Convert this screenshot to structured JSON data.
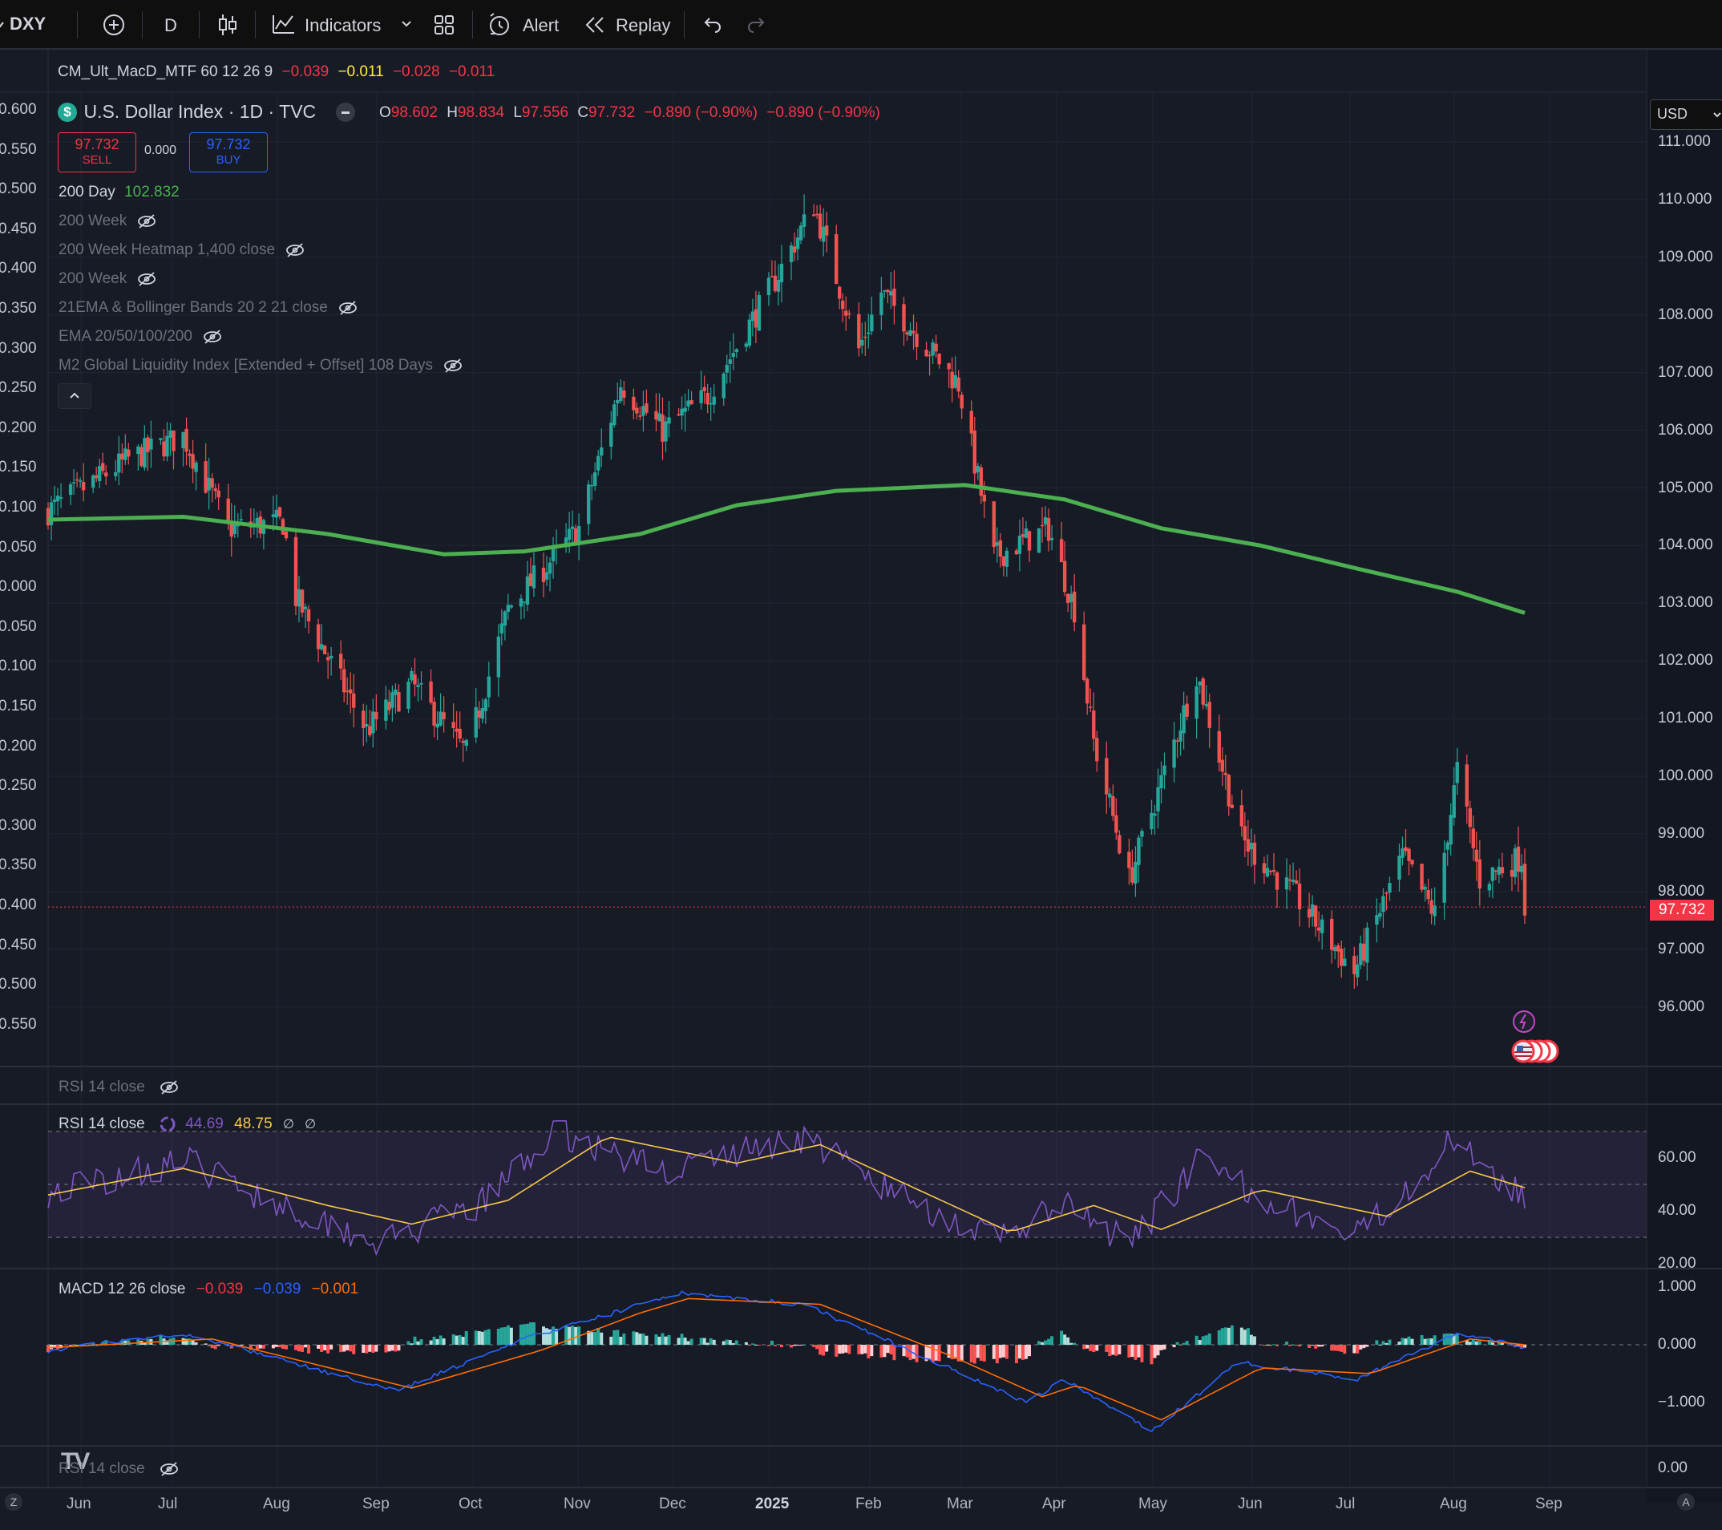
{
  "toolbar": {
    "symbol": "DXY",
    "interval": "D",
    "indicators_label": "Indicators",
    "alert_label": "Alert",
    "replay_label": "Replay"
  },
  "mtf_indicator": {
    "name": "CM_Ult_MacD_MTF 60 12 26 9",
    "v1": "−0.039",
    "v2": "−0.011",
    "v3": "−0.028",
    "v4": "−0.011"
  },
  "symbol_header": {
    "title": "U.S. Dollar Index · 1D · TVC",
    "open_label": "O",
    "open": "98.602",
    "high_label": "H",
    "high": "98.834",
    "low_label": "L",
    "low": "97.556",
    "close_label": "C",
    "close": "97.732",
    "change": "−0.890 (−0.90%)",
    "change2": "−0.890 (−0.90%)"
  },
  "trade": {
    "sell_price": "97.732",
    "sell_label": "SELL",
    "spread": "0.000",
    "buy_price": "97.732",
    "buy_label": "BUY"
  },
  "overlays": {
    "ma200_name": "200 Day",
    "ma200_value": "102.832",
    "hidden": [
      "200 Week",
      "200 Week Heatmap 1,400 close",
      "200 Week",
      "21EMA & Bollinger Bands 20 2 21 close",
      "EMA 20/50/100/200",
      "M2 Global Liquidity Index [Extended + Offset] 108 Days"
    ]
  },
  "currency": "USD",
  "price_axis": [
    "111.000",
    "110.000",
    "109.000",
    "108.000",
    "107.000",
    "106.000",
    "105.000",
    "104.000",
    "103.000",
    "102.000",
    "101.000",
    "100.000",
    "99.000",
    "98.000",
    "97.000",
    "96.000"
  ],
  "current_price_tag": "97.732",
  "left_axis": [
    "0.600",
    "0.550",
    "0.500",
    "0.450",
    "0.400",
    "0.350",
    "0.300",
    "0.250",
    "0.200",
    "0.150",
    "0.100",
    "0.050",
    "0.000",
    "0.050",
    "0.100",
    "0.150",
    "0.200",
    "0.250",
    "0.300",
    "0.350",
    "0.400",
    "0.450",
    "0.500",
    "0.550"
  ],
  "rsi_hidden_label": "RSI 14 close",
  "rsi": {
    "label": "RSI 14 close",
    "value": "44.69",
    "ma_value": "48.75",
    "na1": "∅",
    "na2": "∅",
    "axis": [
      "60.00",
      "40.00",
      "20.00"
    ]
  },
  "macd": {
    "label": "MACD 12 26 close",
    "hist": "−0.039",
    "macd": "−0.039",
    "signal": "−0.001",
    "axis": [
      "1.000",
      "0.000",
      "−1.000"
    ]
  },
  "bottom_pane": {
    "label": "RSI 14 close",
    "axis": "0.00",
    "logo": "TV"
  },
  "time_axis": [
    {
      "label": "Jun",
      "bold": false
    },
    {
      "label": "Jul",
      "bold": false
    },
    {
      "label": "Aug",
      "bold": false
    },
    {
      "label": "Sep",
      "bold": false
    },
    {
      "label": "Oct",
      "bold": false
    },
    {
      "label": "Nov",
      "bold": false
    },
    {
      "label": "Dec",
      "bold": false
    },
    {
      "label": "2025",
      "bold": true
    },
    {
      "label": "Feb",
      "bold": false
    },
    {
      "label": "Mar",
      "bold": false
    },
    {
      "label": "Apr",
      "bold": false
    },
    {
      "label": "May",
      "bold": false
    },
    {
      "label": "Jun",
      "bold": false
    },
    {
      "label": "Jul",
      "bold": false
    },
    {
      "label": "Aug",
      "bold": false
    },
    {
      "label": "Sep",
      "bold": false
    }
  ],
  "bottom_left": "Z",
  "bottom_right": "A",
  "colors": {
    "bg": "#171b26",
    "up": "#26a69a",
    "down": "#ef5350",
    "ma200": "#4caf50",
    "rsi": "#7e57c2",
    "rsi_ma": "#f7c948",
    "macd": "#2962ff",
    "signal": "#ff6d00"
  },
  "chart_data": [
    {
      "type": "candlestick",
      "title": "U.S. Dollar Index · 1D · TVC",
      "x_range": [
        "2024-05-20",
        "2025-08-22"
      ],
      "ylim": [
        95.2,
        111.5
      ],
      "close_path": [
        {
          "date": "2024-05-20",
          "close": 104.6
        },
        {
          "date": "2024-06-14",
          "close": 105.5
        },
        {
          "date": "2024-07-01",
          "close": 105.9
        },
        {
          "date": "2024-07-15",
          "close": 104.3
        },
        {
          "date": "2024-08-01",
          "close": 104.4
        },
        {
          "date": "2024-08-05",
          "close": 103.1
        },
        {
          "date": "2024-08-27",
          "close": 100.8
        },
        {
          "date": "2024-09-10",
          "close": 101.6
        },
        {
          "date": "2024-09-27",
          "close": 100.4
        },
        {
          "date": "2024-10-10",
          "close": 102.9
        },
        {
          "date": "2024-11-01",
          "close": 104.3
        },
        {
          "date": "2024-11-14",
          "close": 106.8
        },
        {
          "date": "2024-11-27",
          "close": 106.0
        },
        {
          "date": "2024-12-11",
          "close": 106.6
        },
        {
          "date": "2024-12-31",
          "close": 108.5
        },
        {
          "date": "2025-01-13",
          "close": 109.9
        },
        {
          "date": "2025-01-27",
          "close": 107.4
        },
        {
          "date": "2025-02-03",
          "close": 108.4
        },
        {
          "date": "2025-02-27",
          "close": 106.8
        },
        {
          "date": "2025-03-10",
          "close": 103.8
        },
        {
          "date": "2025-03-27",
          "close": 104.3
        },
        {
          "date": "2025-04-04",
          "close": 102.9
        },
        {
          "date": "2025-04-10",
          "close": 100.6
        },
        {
          "date": "2025-04-21",
          "close": 98.2
        },
        {
          "date": "2025-05-01",
          "close": 99.9
        },
        {
          "date": "2025-05-12",
          "close": 101.8
        },
        {
          "date": "2025-05-26",
          "close": 98.9
        },
        {
          "date": "2025-06-12",
          "close": 97.9
        },
        {
          "date": "2025-06-30",
          "close": 96.6
        },
        {
          "date": "2025-07-15",
          "close": 98.6
        },
        {
          "date": "2025-07-25",
          "close": 97.6
        },
        {
          "date": "2025-08-01",
          "close": 100.1
        },
        {
          "date": "2025-08-08",
          "close": 98.2
        },
        {
          "date": "2025-08-21",
          "close": 98.6
        },
        {
          "date": "2025-08-22",
          "close": 97.732
        }
      ],
      "ma200": [
        {
          "date": "2024-05-20",
          "value": 104.45
        },
        {
          "date": "2024-07-01",
          "value": 104.5
        },
        {
          "date": "2024-08-15",
          "value": 104.2
        },
        {
          "date": "2024-09-20",
          "value": 103.85
        },
        {
          "date": "2024-10-15",
          "value": 103.9
        },
        {
          "date": "2024-11-20",
          "value": 104.2
        },
        {
          "date": "2024-12-20",
          "value": 104.7
        },
        {
          "date": "2025-01-20",
          "value": 104.95
        },
        {
          "date": "2025-03-01",
          "value": 105.05
        },
        {
          "date": "2025-04-01",
          "value": 104.8
        },
        {
          "date": "2025-05-01",
          "value": 104.3
        },
        {
          "date": "2025-06-01",
          "value": 104.0
        },
        {
          "date": "2025-07-01",
          "value": 103.6
        },
        {
          "date": "2025-08-01",
          "value": 103.2
        },
        {
          "date": "2025-08-22",
          "value": 102.832
        }
      ]
    },
    {
      "type": "line",
      "title": "RSI 14 close",
      "ylim": [
        20,
        70
      ],
      "series": [
        {
          "values_by_date": [
            {
              "date": "2024-05-20",
              "value": 47
            },
            {
              "date": "2024-07-01",
              "value": 59
            },
            {
              "date": "2024-08-05",
              "value": 40
            },
            {
              "date": "2024-09-01",
              "value": 28
            },
            {
              "date": "2024-10-01",
              "value": 42
            },
            {
              "date": "2024-10-25",
              "value": 70
            },
            {
              "date": "2024-11-27",
              "value": 55
            },
            {
              "date": "2025-01-10",
              "value": 68
            },
            {
              "date": "2025-02-05",
              "value": 48
            },
            {
              "date": "2025-03-10",
              "value": 29
            },
            {
              "date": "2025-04-01",
              "value": 42
            },
            {
              "date": "2025-04-21",
              "value": 27
            },
            {
              "date": "2025-05-12",
              "value": 58
            },
            {
              "date": "2025-06-30",
              "value": 29
            },
            {
              "date": "2025-08-01",
              "value": 68
            },
            {
              "date": "2025-08-22",
              "value": 44.69
            }
          ]
        },
        {
          "values_by_date": [
            {
              "date": "2024-05-20",
              "value": 46
            },
            {
              "date": "2024-07-01",
              "value": 56
            },
            {
              "date": "2024-08-15",
              "value": 42
            },
            {
              "date": "2024-09-10",
              "value": 35
            },
            {
              "date": "2024-10-10",
              "value": 44
            },
            {
              "date": "2024-11-10",
              "value": 68
            },
            {
              "date": "2024-12-20",
              "value": 58
            },
            {
              "date": "2025-01-15",
              "value": 65
            },
            {
              "date": "2025-03-15",
              "value": 32
            },
            {
              "date": "2025-04-10",
              "value": 42
            },
            {
              "date": "2025-05-01",
              "value": 33
            },
            {
              "date": "2025-06-01",
              "value": 48
            },
            {
              "date": "2025-07-10",
              "value": 38
            },
            {
              "date": "2025-08-05",
              "value": 55
            },
            {
              "date": "2025-08-22",
              "value": 48.75
            }
          ]
        }
      ]
    },
    {
      "type": "bar",
      "title": "MACD 12 26 close",
      "ylim": [
        -1.8,
        1.1
      ],
      "series": [
        {
          "values_by_date": [
            {
              "date": "2024-05-20",
              "value": -0.1
            },
            {
              "date": "2024-07-01",
              "value": 0.2
            },
            {
              "date": "2024-09-05",
              "value": -0.8
            },
            {
              "date": "2024-10-15",
              "value": 0.1
            },
            {
              "date": "2024-11-15",
              "value": 0.6
            },
            {
              "date": "2024-12-01",
              "value": 0.9
            },
            {
              "date": "2025-01-10",
              "value": 0.7
            },
            {
              "date": "2025-02-20",
              "value": -0.3
            },
            {
              "date": "2025-03-20",
              "value": -1.0
            },
            {
              "date": "2025-04-01",
              "value": -0.6
            },
            {
              "date": "2025-04-28",
              "value": -1.5
            },
            {
              "date": "2025-05-25",
              "value": -0.3
            },
            {
              "date": "2025-07-01",
              "value": -0.6
            },
            {
              "date": "2025-08-01",
              "value": 0.2
            },
            {
              "date": "2025-08-22",
              "value": -0.039
            }
          ]
        },
        {
          "values_by_date": [
            {
              "date": "2024-05-20",
              "value": -0.05
            },
            {
              "date": "2024-07-10",
              "value": 0.1
            },
            {
              "date": "2024-09-10",
              "value": -0.75
            },
            {
              "date": "2024-10-20",
              "value": -0.1
            },
            {
              "date": "2024-11-20",
              "value": 0.55
            },
            {
              "date": "2024-12-05",
              "value": 0.8
            },
            {
              "date": "2025-01-15",
              "value": 0.7
            },
            {
              "date": "2025-02-25",
              "value": -0.2
            },
            {
              "date": "2025-03-25",
              "value": -0.9
            },
            {
              "date": "2025-04-05",
              "value": -0.7
            },
            {
              "date": "2025-05-01",
              "value": -1.3
            },
            {
              "date": "2025-06-01",
              "value": -0.4
            },
            {
              "date": "2025-07-05",
              "value": -0.5
            },
            {
              "date": "2025-08-05",
              "value": 0.1
            },
            {
              "date": "2025-08-22",
              "value": -0.001
            }
          ]
        }
      ]
    }
  ]
}
